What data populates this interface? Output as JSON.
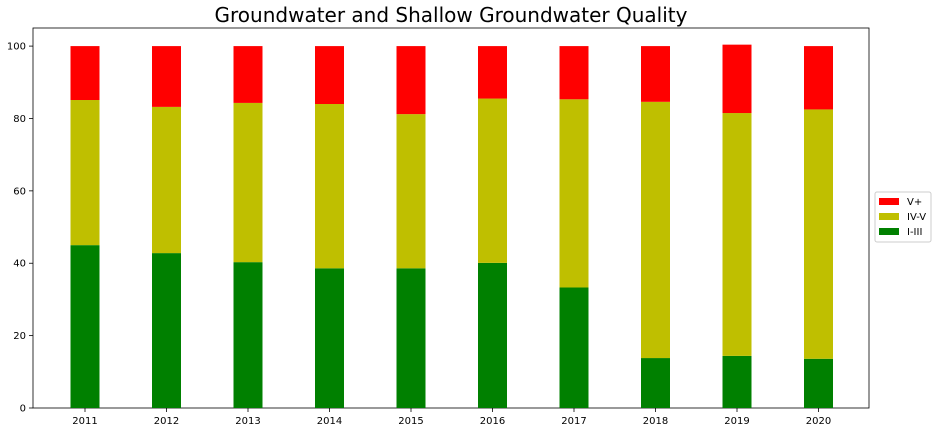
{
  "chart_data": {
    "type": "bar",
    "stacked": true,
    "title": "Groundwater and Shallow Groundwater Quality",
    "xlabel": "",
    "ylabel": "",
    "categories": [
      "2011",
      "2012",
      "2013",
      "2014",
      "2015",
      "2016",
      "2017",
      "2018",
      "2019",
      "2020"
    ],
    "series": [
      {
        "name": "I-III",
        "color": "#008000",
        "values": [
          45.0,
          42.8,
          40.3,
          38.6,
          38.6,
          40.1,
          33.3,
          13.8,
          14.4,
          13.6
        ]
      },
      {
        "name": "IV-V",
        "color": "#bfbf00",
        "values": [
          40.1,
          40.4,
          44.0,
          45.4,
          42.6,
          45.4,
          52.0,
          70.8,
          67.1,
          68.9
        ]
      },
      {
        "name": "V+",
        "color": "#ff0000",
        "values": [
          14.9,
          16.8,
          15.7,
          16.0,
          18.8,
          14.5,
          14.7,
          15.4,
          18.9,
          17.5
        ]
      }
    ],
    "ylim": [
      0,
      105
    ],
    "yticks": [
      0,
      20,
      40,
      60,
      80,
      100
    ],
    "grid": false,
    "legend_position": "right",
    "legend_order": [
      "V+",
      "IV-V",
      "I-III"
    ]
  }
}
